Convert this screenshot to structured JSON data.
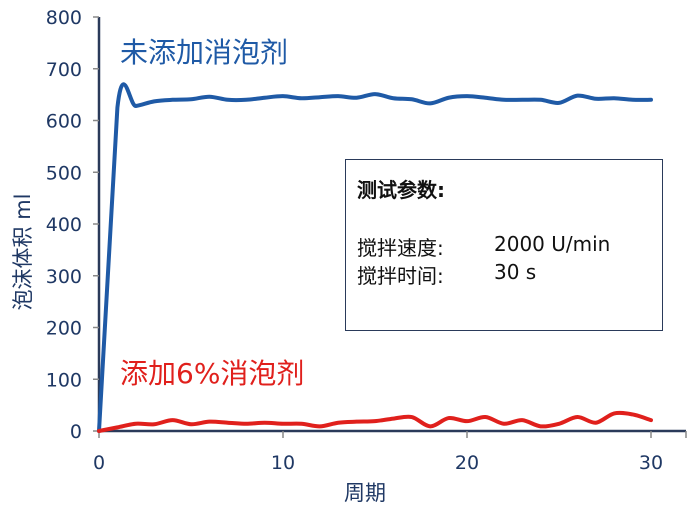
{
  "chart_data": {
    "type": "line",
    "xlabel": "周期",
    "ylabel": "泡沫体积 ml",
    "xlim": [
      0,
      30
    ],
    "ylim": [
      0,
      800
    ],
    "xticks": [
      0,
      10,
      20,
      30
    ],
    "yticks": [
      0,
      100,
      200,
      300,
      400,
      500,
      600,
      700,
      800
    ],
    "grid": false,
    "x": [
      0,
      1,
      2,
      3,
      4,
      5,
      6,
      7,
      8,
      9,
      10,
      11,
      12,
      13,
      14,
      15,
      16,
      17,
      18,
      19,
      20,
      21,
      22,
      23,
      24,
      25,
      26,
      27,
      28,
      29,
      30
    ],
    "series": [
      {
        "name": "未添加消泡剂",
        "color": "#1f5aa6",
        "values": [
          0,
          625,
          628,
          637,
          640,
          641,
          646,
          640,
          640,
          644,
          647,
          643,
          645,
          647,
          644,
          651,
          643,
          641,
          633,
          644,
          647,
          644,
          640,
          640,
          640,
          634,
          648,
          642,
          643,
          640,
          640
        ]
      },
      {
        "name": "添加6%消泡剂",
        "color": "#e0201c",
        "values": [
          0,
          7,
          14,
          13,
          21,
          13,
          18,
          16,
          14,
          16,
          14,
          14,
          9,
          16,
          18,
          19,
          24,
          27,
          9,
          25,
          19,
          27,
          14,
          21,
          9,
          14,
          27,
          16,
          34,
          32,
          21
        ]
      }
    ],
    "annotation_box": {
      "title": "测试参数:",
      "rows": [
        {
          "label": "搅拌速度:",
          "value": "2000 U/min"
        },
        {
          "label": "搅拌时间:",
          "value": "30 s"
        }
      ]
    }
  }
}
